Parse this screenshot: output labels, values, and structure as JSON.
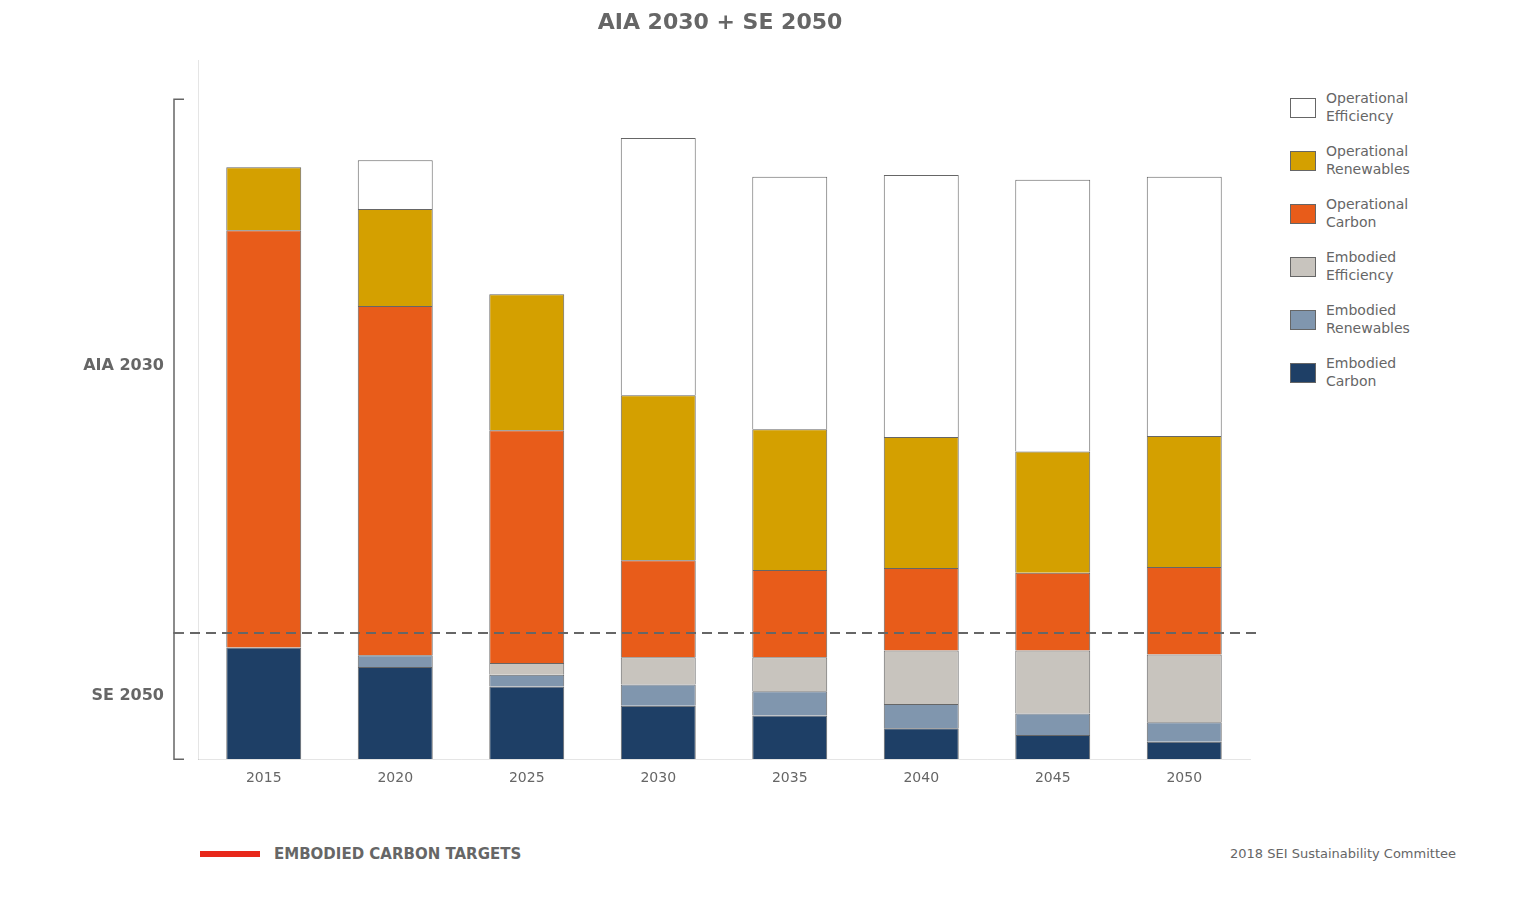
{
  "chart_data": {
    "type": "bar",
    "title": "AIA 2030 + SE 2050",
    "categories": [
      "2015",
      "2020",
      "2025",
      "2030",
      "2035",
      "2040",
      "2045",
      "2050"
    ],
    "series": [
      {
        "name": "Embodied\nCarbon",
        "color": "#1e3f66",
        "values": [
          0.115,
          0.095,
          0.075,
          0.055,
          0.045,
          0.032,
          0.025,
          0.018
        ]
      },
      {
        "name": "Embodied\nRenewables",
        "color": "#8096ae",
        "values": [
          0.0,
          0.012,
          0.012,
          0.022,
          0.025,
          0.025,
          0.022,
          0.02
        ]
      },
      {
        "name": "Embodied\nEfficiency",
        "color": "#c8c4be",
        "values": [
          0.0,
          0.0,
          0.012,
          0.028,
          0.035,
          0.055,
          0.065,
          0.07
        ]
      },
      {
        "name": "Operational\nCarbon",
        "color": "#e85c1a",
        "values": [
          0.43,
          0.36,
          0.24,
          0.1,
          0.09,
          0.085,
          0.08,
          0.09
        ]
      },
      {
        "name": "Operational\nRenewables",
        "color": "#d4a000",
        "values": [
          0.065,
          0.1,
          0.14,
          0.17,
          0.145,
          0.135,
          0.125,
          0.135
        ]
      },
      {
        "name": "Operational\nEfficiency",
        "color": "#ffffff",
        "values": [
          0.0,
          0.05,
          0.0,
          0.265,
          0.26,
          0.27,
          0.28,
          0.267
        ]
      }
    ],
    "stacked": true,
    "ylim": [
      0,
      0.72
    ],
    "yticks": [],
    "grid": false,
    "tick_labels": "x",
    "legend": "right",
    "reference_lines": [
      {
        "y": 0.13,
        "line_style": "dashed"
      }
    ],
    "annotations": [
      {
        "text": "AIA 2030",
        "y_range": [
          0.13,
          0.68
        ]
      },
      {
        "text": "SE 2050",
        "y_range": [
          0,
          0.13
        ]
      },
      {
        "text": "EMBODIED CARBON TARGETS",
        "color": "#e8281a"
      },
      {
        "text": "2018 SEI Sustainability Committee"
      }
    ]
  }
}
